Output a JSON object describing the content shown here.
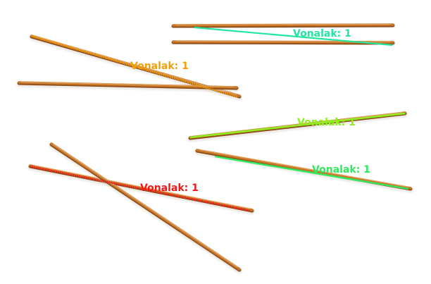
{
  "scene": {
    "background": "#ffffff",
    "object": "chopstick",
    "stick_colors": {
      "main": "#C8762A",
      "highlight": "#E2A35B",
      "shade": "#8B4B16"
    }
  },
  "annotations": [
    {
      "label": "Vonalak: 1",
      "color": "#F2A007"
    },
    {
      "label": "Vonalak: 1",
      "color": "#23E6A0"
    },
    {
      "label": "Vonalak: 1",
      "color": "#8CF01E"
    },
    {
      "label": "Vonalak: 1",
      "color": "#2EEA5C"
    },
    {
      "label": "Vonalak: 1",
      "color": "#F01818"
    }
  ]
}
